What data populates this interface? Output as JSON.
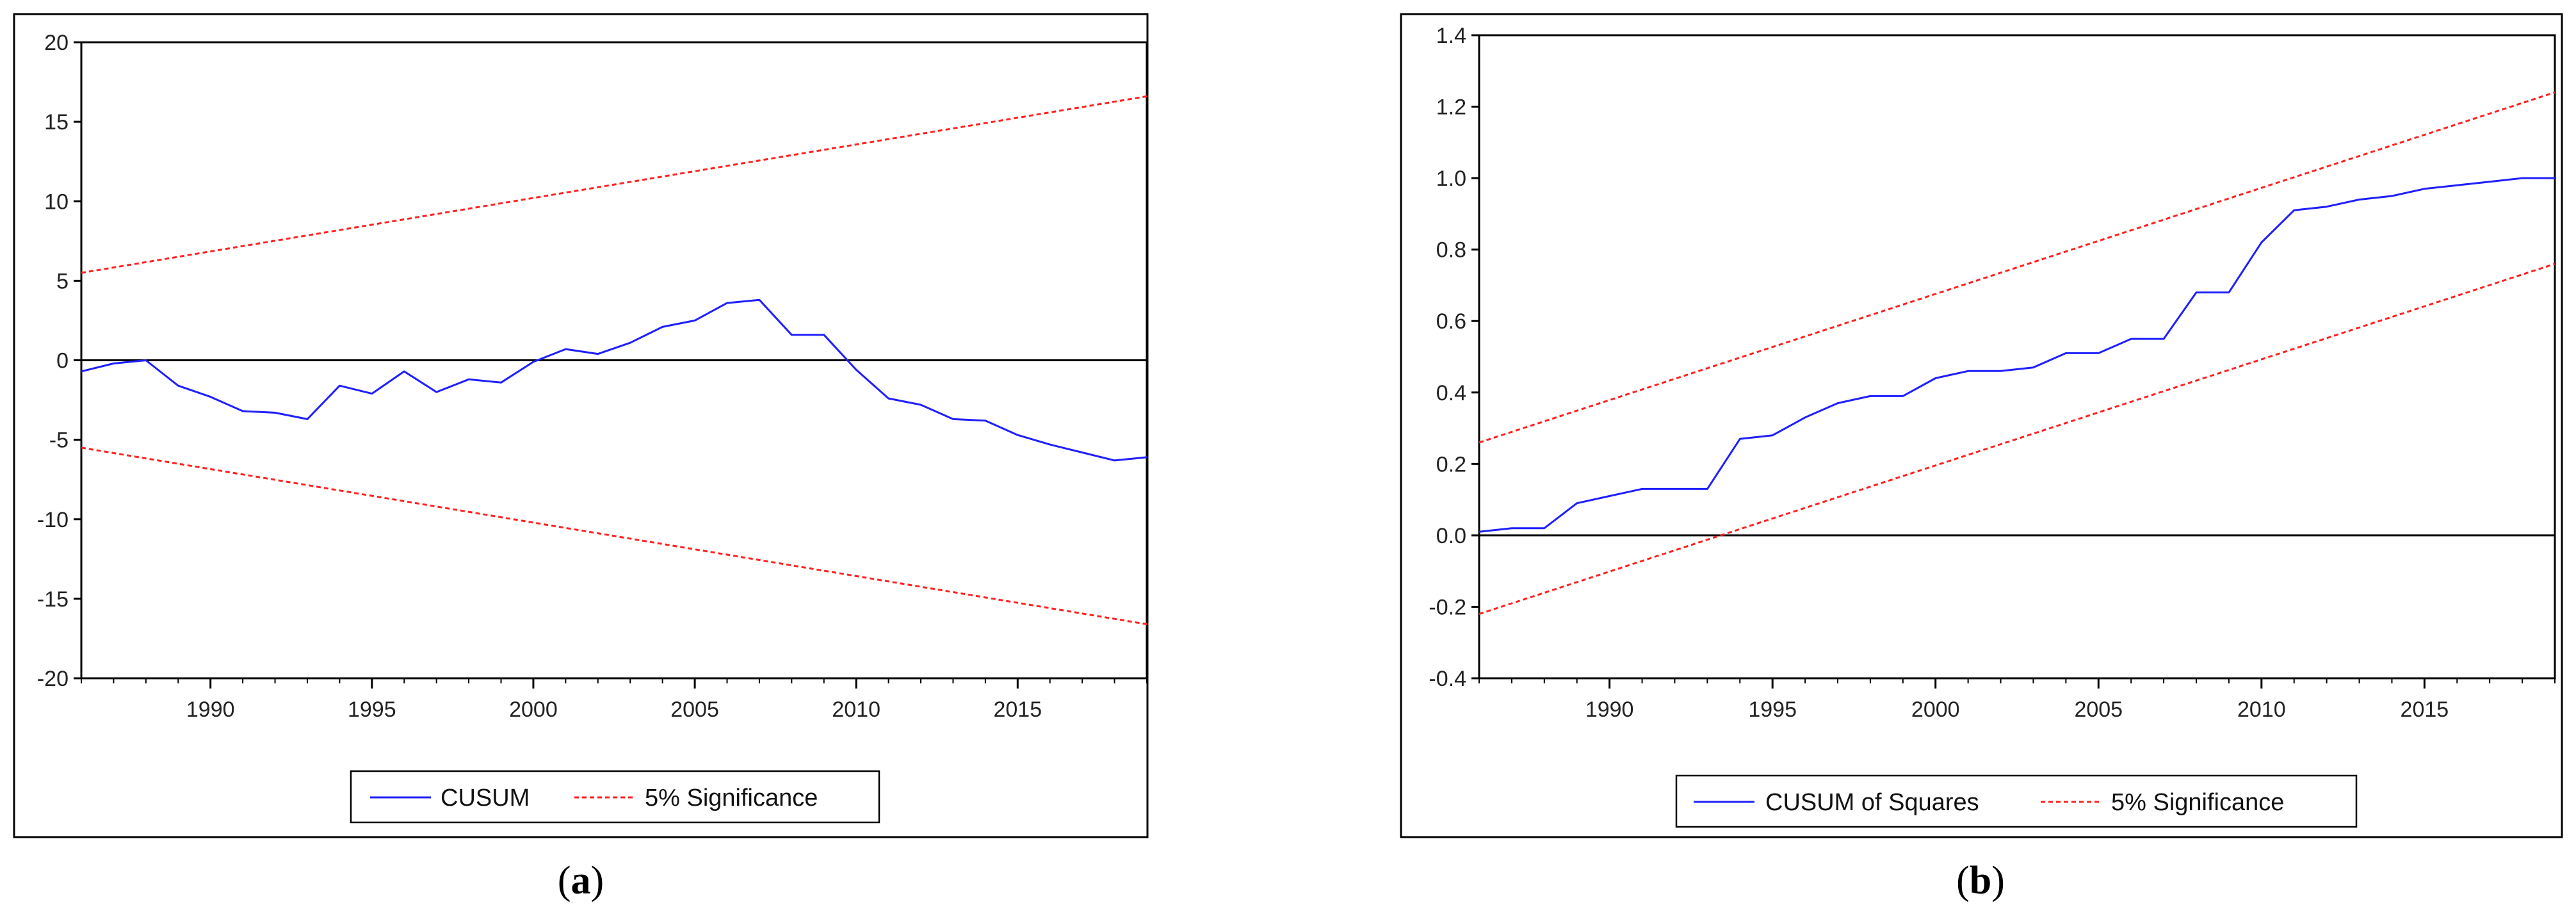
{
  "chart_data": [
    {
      "type": "line",
      "caption_letter": "a",
      "xlim": [
        1986,
        2019
      ],
      "ylim": [
        -20,
        20
      ],
      "xticks": [
        1990,
        1995,
        2000,
        2005,
        2010,
        2015
      ],
      "yticks": [
        -20,
        -15,
        -10,
        -5,
        0,
        5,
        10,
        15,
        20
      ],
      "zero_line": true,
      "grid": false,
      "legend_position": "bottom-center",
      "series": [
        {
          "name": "CUSUM",
          "color": "#1f1fff",
          "style": "solid",
          "x": [
            1986,
            1987,
            1988,
            1989,
            1990,
            1991,
            1992,
            1993,
            1994,
            1995,
            1996,
            1997,
            1998,
            1999,
            2000,
            2001,
            2002,
            2003,
            2004,
            2005,
            2006,
            2007,
            2008,
            2009,
            2010,
            2011,
            2012,
            2013,
            2014,
            2015,
            2016,
            2017,
            2018,
            2019
          ],
          "y": [
            -0.7,
            -0.2,
            0.0,
            -1.6,
            -2.3,
            -3.2,
            -3.3,
            -3.7,
            -1.6,
            -2.1,
            -0.7,
            -2.0,
            -1.2,
            -1.4,
            -0.1,
            0.7,
            0.4,
            1.1,
            2.1,
            2.5,
            3.6,
            3.8,
            1.6,
            1.6,
            -0.6,
            -2.4,
            -2.8,
            -3.7,
            -3.8,
            -4.7,
            -5.3,
            -5.8,
            -6.3,
            -6.1
          ]
        },
        {
          "name": "5% Significance",
          "color": "#ff2020",
          "style": "dashed",
          "x": [
            1986,
            2019
          ],
          "y": [
            5.5,
            16.6
          ]
        },
        {
          "name": "",
          "color": "#ff2020",
          "style": "dashed",
          "x": [
            1986,
            2019
          ],
          "y": [
            -5.5,
            -16.6
          ]
        }
      ]
    },
    {
      "type": "line",
      "caption_letter": "b",
      "xlim": [
        1986,
        2019
      ],
      "ylim": [
        -0.4,
        1.4
      ],
      "xticks": [
        1990,
        1995,
        2000,
        2005,
        2010,
        2015
      ],
      "yticks": [
        -0.4,
        -0.2,
        0.0,
        0.2,
        0.4,
        0.6,
        0.8,
        1.0,
        1.2,
        1.4
      ],
      "zero_line": true,
      "grid": false,
      "legend_position": "bottom-center",
      "series": [
        {
          "name": "CUSUM of Squares",
          "color": "#1f1fff",
          "style": "solid",
          "x": [
            1986,
            1987,
            1988,
            1989,
            1990,
            1991,
            1992,
            1993,
            1994,
            1995,
            1996,
            1997,
            1998,
            1999,
            2000,
            2001,
            2002,
            2003,
            2004,
            2005,
            2006,
            2007,
            2008,
            2009,
            2010,
            2011,
            2012,
            2013,
            2014,
            2015,
            2016,
            2017,
            2018,
            2019
          ],
          "y": [
            0.01,
            0.02,
            0.02,
            0.09,
            0.11,
            0.13,
            0.13,
            0.13,
            0.27,
            0.28,
            0.33,
            0.37,
            0.39,
            0.39,
            0.44,
            0.46,
            0.46,
            0.47,
            0.51,
            0.51,
            0.55,
            0.55,
            0.68,
            0.68,
            0.82,
            0.91,
            0.92,
            0.94,
            0.95,
            0.97,
            0.98,
            0.99,
            1.0,
            1.0
          ]
        },
        {
          "name": "5% Significance",
          "color": "#ff2020",
          "style": "dashed",
          "x": [
            1986,
            2019
          ],
          "y": [
            0.26,
            1.24
          ]
        },
        {
          "name": "",
          "color": "#ff2020",
          "style": "dashed",
          "x": [
            1986,
            2019
          ],
          "y": [
            -0.22,
            0.76
          ]
        }
      ]
    }
  ]
}
